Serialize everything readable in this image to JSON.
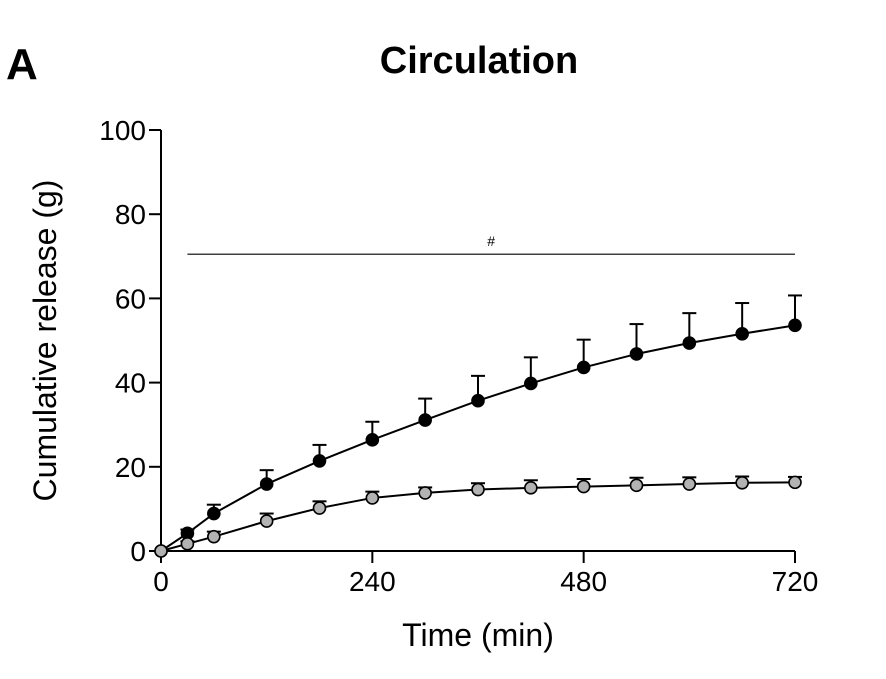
{
  "panel_label": "A",
  "chart_data": {
    "type": "line",
    "title": "Circulation",
    "xlabel": "Time (min)",
    "ylabel": "Cumulative release (g)",
    "xlim": [
      0,
      720
    ],
    "ylim": [
      0,
      100
    ],
    "xticks": [
      0,
      240,
      480,
      720
    ],
    "yticks": [
      0,
      20,
      40,
      60,
      80,
      100
    ],
    "annotation": {
      "text": "#",
      "x_start": 30,
      "x_end": 720,
      "y": 70.5
    },
    "series": [
      {
        "name": "black",
        "color": "#000000",
        "x": [
          0,
          30,
          60,
          120,
          180,
          240,
          300,
          360,
          420,
          480,
          540,
          600,
          660,
          720
        ],
        "values": [
          0,
          4.2,
          8.9,
          15.9,
          21.4,
          26.4,
          31.1,
          35.7,
          39.8,
          43.6,
          46.8,
          49.4,
          51.6,
          53.6
        ],
        "errors": [
          0,
          0.9,
          2.1,
          3.3,
          3.8,
          4.3,
          5.1,
          5.9,
          6.2,
          6.6,
          7.1,
          7.1,
          7.3,
          7.1
        ]
      },
      {
        "name": "grey",
        "color": "#b3b3b3",
        "x": [
          0,
          30,
          60,
          120,
          180,
          240,
          300,
          360,
          420,
          480,
          540,
          600,
          660,
          720
        ],
        "values": [
          0,
          1.7,
          3.4,
          7.1,
          10.2,
          12.6,
          13.8,
          14.6,
          15.0,
          15.3,
          15.6,
          15.9,
          16.2,
          16.3
        ],
        "errors": [
          0,
          0.6,
          1.2,
          1.8,
          1.6,
          1.5,
          1.3,
          1.5,
          1.8,
          1.8,
          1.8,
          1.6,
          1.5,
          1.3
        ]
      }
    ]
  }
}
